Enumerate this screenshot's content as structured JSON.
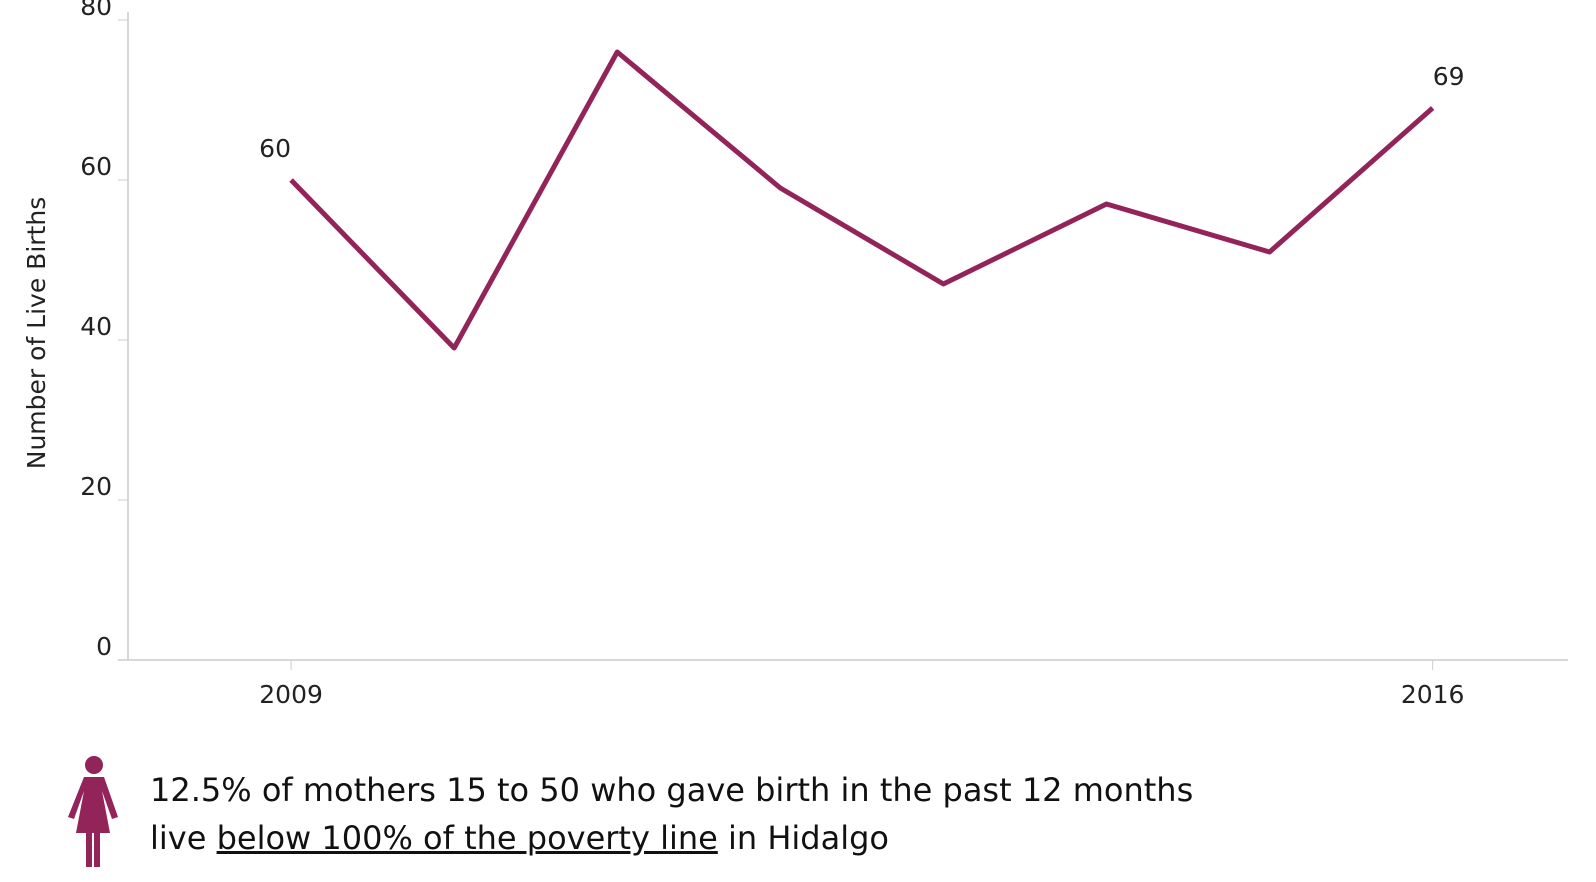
{
  "chart_data": {
    "type": "line",
    "y_axis_label": "Number of Live Births",
    "x": [
      2009,
      2010,
      2011,
      2012,
      2013,
      2014,
      2015,
      2016
    ],
    "series": [
      {
        "name": "Live Births",
        "color": "#93245a",
        "values": [
          60,
          39,
          76,
          59,
          47,
          57,
          51,
          69
        ]
      }
    ],
    "xlim": [
      2008,
      2016.83
    ],
    "xticks": [
      2009,
      2016
    ],
    "ylim": [
      0,
      80
    ],
    "yticks": [
      0,
      20,
      40,
      60,
      80
    ],
    "grid": false,
    "footnote": {
      "line1": "12.5% of mothers 15 to 50 who gave birth in the past 12 months",
      "line2_before": "live",
      "line2_link": "below 100% of the poverty line",
      "line2_after": "in Hidalgo"
    }
  }
}
